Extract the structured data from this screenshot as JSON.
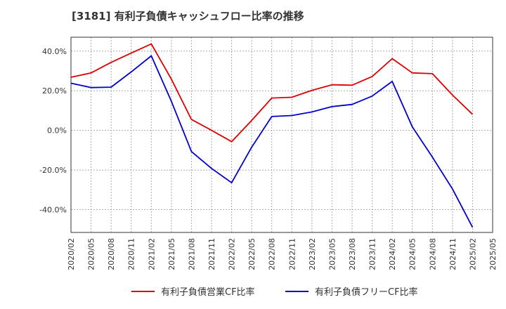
{
  "chart_data": {
    "type": "line",
    "title": "[3181]  有利子負債キャッシュフロー比率の推移",
    "x": [
      "2020/02",
      "2020/05",
      "2020/08",
      "2020/11",
      "2021/02",
      "2021/05",
      "2021/08",
      "2021/11",
      "2022/02",
      "2022/05",
      "2022/08",
      "2022/11",
      "2023/02",
      "2023/05",
      "2023/08",
      "2023/11",
      "2024/02",
      "2024/05",
      "2024/08",
      "2024/11",
      "2025/02",
      "2025/05"
    ],
    "series": [
      {
        "name": "有利子負債営業CF比率",
        "color": "#dd0000",
        "values": [
          26.8,
          29.0,
          34.3,
          39.0,
          43.6,
          25.8,
          5.5,
          0.0,
          -5.7,
          5.0,
          16.3,
          16.7,
          20.2,
          23.0,
          22.8,
          27.2,
          36.2,
          29.0,
          28.6,
          17.8,
          8.1,
          null
        ]
      },
      {
        "name": "有利子負債フリーCF比率",
        "color": "#0000cc",
        "values": [
          23.8,
          21.6,
          21.8,
          29.5,
          37.6,
          14.6,
          -10.7,
          -19.2,
          -26.4,
          -8.5,
          7.0,
          7.5,
          9.3,
          12.0,
          13.1,
          17.3,
          24.7,
          1.8,
          -13.5,
          -29.6,
          -48.9,
          null
        ]
      }
    ],
    "yticks": [
      "40.0%",
      "20.0%",
      "0.0%",
      "-20.0%",
      "-40.0%"
    ],
    "ytick_values": [
      40,
      20,
      0,
      -20,
      -40
    ],
    "ylim": [
      -51.5,
      47
    ],
    "grid": true,
    "legend_position": "bottom"
  }
}
